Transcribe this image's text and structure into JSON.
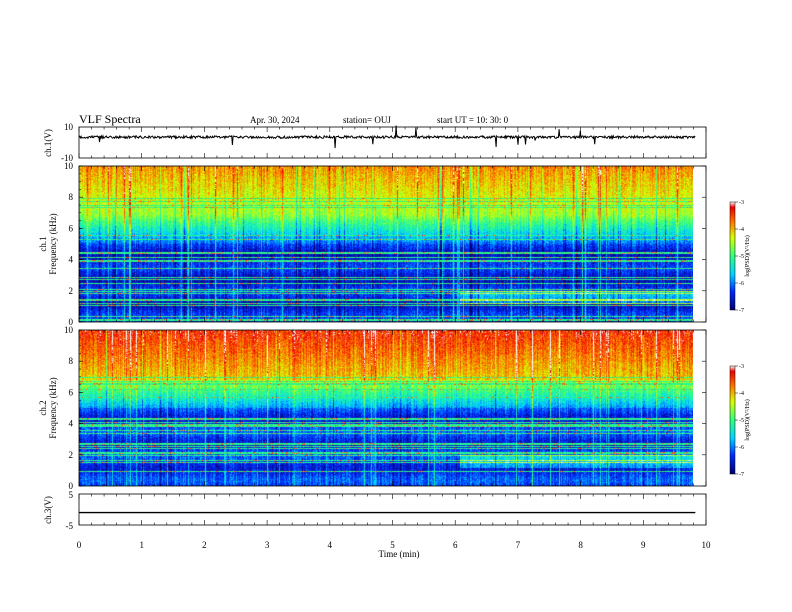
{
  "header": {
    "title": "VLF Spectra",
    "date": "Apr. 30, 2024",
    "station": "station= OUJ",
    "start": "start  UT =   10: 30: 0"
  },
  "chart_data": [
    {
      "type": "line",
      "name": "ch1-waveform",
      "ylabel": "ch.1(V)",
      "ylim": [
        -10,
        10
      ],
      "yticks": [
        "10",
        "-10"
      ],
      "baseline": 3.5,
      "xlim": [
        0,
        10
      ]
    },
    {
      "type": "heatmap",
      "name": "ch1-spectrogram",
      "ylabel": "ch.1\nFrequency (kHz)",
      "ylim": [
        0,
        10
      ],
      "yticks": [
        "0",
        "2",
        "4",
        "6",
        "8",
        "10"
      ],
      "xlim": [
        0,
        10
      ],
      "data_extent_min": 9.83,
      "colorbar": {
        "label": "log(PSD)(V²/Hz)",
        "range": [
          -7,
          -3
        ],
        "ticks": [
          "-3",
          "-4",
          "-5",
          "-6",
          "-7"
        ]
      }
    },
    {
      "type": "heatmap",
      "name": "ch2-spectrogram",
      "ylabel": "ch.2\nFrequency (kHz)",
      "ylim": [
        0,
        10
      ],
      "yticks": [
        "0",
        "2",
        "4",
        "6",
        "8",
        "10"
      ],
      "xlim": [
        0,
        10
      ],
      "data_extent_min": 9.83,
      "colorbar": {
        "label": "log(PSD)(V²/Hz)",
        "range": [
          -7,
          -3
        ],
        "ticks": [
          "-3",
          "-4",
          "-5",
          "-6",
          "-7"
        ]
      }
    },
    {
      "type": "line",
      "name": "ch3-waveform",
      "ylabel": "ch.3(V)",
      "ylim": [
        -5,
        5
      ],
      "yticks": [
        "5",
        "-5"
      ],
      "baseline": -1,
      "xlim": [
        0,
        10
      ]
    }
  ],
  "xaxis": {
    "label": "Time (min)",
    "ticks": [
      "0",
      "1",
      "2",
      "3",
      "4",
      "5",
      "6",
      "7",
      "8",
      "9",
      "10"
    ]
  }
}
